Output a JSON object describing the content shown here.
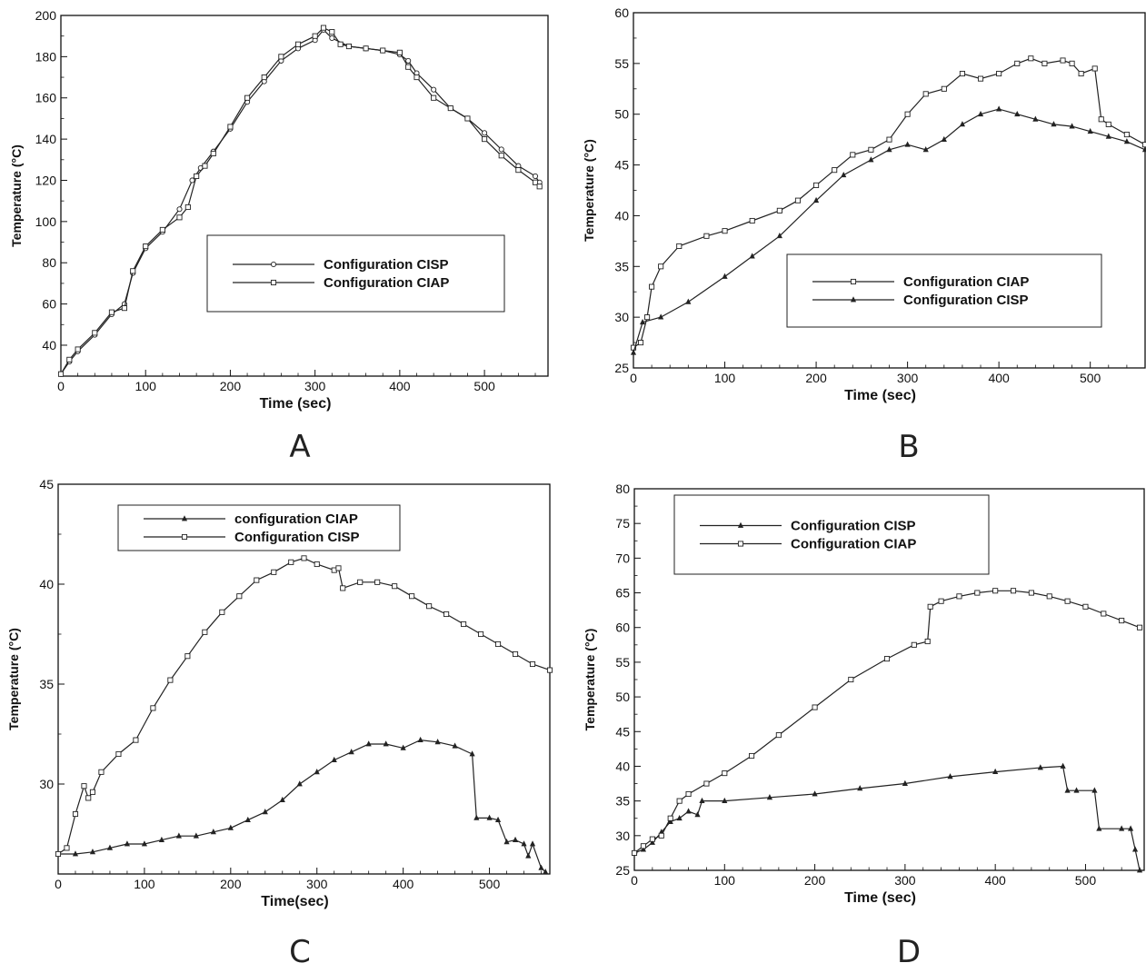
{
  "chart_data": [
    {
      "panel": "A",
      "type": "line",
      "xlabel": "Time (sec)",
      "ylabel": "Temperature (°C)",
      "xlim": [
        0,
        575
      ],
      "ylim": [
        25,
        200
      ],
      "xticks": [
        0,
        100,
        200,
        300,
        400,
        500
      ],
      "yticks": [
        40,
        60,
        80,
        100,
        120,
        140,
        160,
        180,
        200
      ],
      "legend_position": "lower-right",
      "series": [
        {
          "name": "Configuration CISP",
          "marker": "circle",
          "x": [
            0,
            10,
            20,
            40,
            60,
            75,
            85,
            100,
            120,
            140,
            155,
            165,
            180,
            200,
            220,
            240,
            260,
            280,
            300,
            310,
            320,
            340,
            360,
            380,
            400,
            410,
            420,
            440,
            460,
            480,
            500,
            520,
            540,
            560,
            565
          ],
          "y": [
            26,
            32,
            37,
            45,
            55,
            60,
            75,
            87,
            95,
            106,
            120,
            126,
            134,
            145,
            158,
            168,
            178,
            184,
            188,
            193,
            189,
            185,
            184,
            183,
            181,
            178,
            172,
            164,
            155,
            150,
            143,
            135,
            127,
            122,
            119
          ]
        },
        {
          "name": "Configuration CIAP",
          "marker": "square",
          "x": [
            0,
            10,
            20,
            40,
            60,
            75,
            85,
            100,
            120,
            140,
            150,
            160,
            170,
            180,
            200,
            220,
            240,
            260,
            280,
            300,
            310,
            320,
            330,
            340,
            360,
            380,
            400,
            410,
            420,
            440,
            460,
            480,
            500,
            520,
            540,
            560,
            565
          ],
          "y": [
            26,
            33,
            38,
            46,
            56,
            58,
            76,
            88,
            96,
            102,
            107,
            122,
            127,
            133,
            146,
            160,
            170,
            180,
            186,
            190,
            194,
            192,
            186,
            185,
            184,
            183,
            182,
            175,
            170,
            160,
            155,
            150,
            140,
            132,
            125,
            119,
            117
          ]
        }
      ]
    },
    {
      "panel": "B",
      "type": "line",
      "xlabel": "Time (sec)",
      "ylabel": "Temperature (°C)",
      "xlim": [
        0,
        560
      ],
      "ylim": [
        25,
        60
      ],
      "xticks": [
        0,
        100,
        200,
        300,
        400,
        500
      ],
      "yticks": [
        25,
        30,
        35,
        40,
        45,
        50,
        55,
        60
      ],
      "legend_position": "lower-right",
      "series": [
        {
          "name": "Configuration CIAP",
          "marker": "square",
          "x": [
            0,
            8,
            15,
            20,
            30,
            50,
            80,
            100,
            130,
            160,
            180,
            200,
            220,
            240,
            260,
            280,
            300,
            320,
            340,
            360,
            380,
            400,
            420,
            435,
            450,
            470,
            480,
            490,
            505,
            512,
            520,
            540,
            560
          ],
          "y": [
            27,
            27.5,
            30,
            33,
            35,
            37,
            38,
            38.5,
            39.5,
            40.5,
            41.5,
            43,
            44.5,
            46,
            46.5,
            47.5,
            50,
            52,
            52.5,
            54,
            53.5,
            54,
            55,
            55.5,
            55,
            55.3,
            55,
            54,
            54.5,
            49.5,
            49,
            48,
            47
          ]
        },
        {
          "name": "Configuration CISP",
          "marker": "triangle",
          "x": [
            0,
            10,
            30,
            60,
            100,
            130,
            160,
            200,
            230,
            260,
            280,
            300,
            320,
            340,
            360,
            380,
            400,
            420,
            440,
            460,
            480,
            500,
            520,
            540,
            560
          ],
          "y": [
            26.5,
            29.5,
            30,
            31.5,
            34,
            36,
            38,
            41.5,
            44,
            45.5,
            46.5,
            47,
            46.5,
            47.5,
            49,
            50,
            50.5,
            50,
            49.5,
            49,
            48.8,
            48.3,
            47.8,
            47.3,
            46.5
          ]
        }
      ]
    },
    {
      "panel": "C",
      "type": "line",
      "xlabel": "Time(sec)",
      "ylabel": "Temperature (°C)",
      "xlim": [
        0,
        570
      ],
      "ylim": [
        25.5,
        45
      ],
      "xticks": [
        0,
        100,
        200,
        300,
        400,
        500
      ],
      "yticks": [
        30,
        35,
        40,
        45
      ],
      "legend_position": "top",
      "series": [
        {
          "name": "configuration CIAP",
          "marker": "triangle",
          "x": [
            0,
            20,
            40,
            60,
            80,
            100,
            120,
            140,
            160,
            180,
            200,
            220,
            240,
            260,
            280,
            300,
            320,
            340,
            360,
            380,
            400,
            420,
            440,
            460,
            480,
            485,
            500,
            510,
            520,
            530,
            540,
            545,
            550,
            560,
            565
          ],
          "y": [
            26.5,
            26.5,
            26.6,
            26.8,
            27,
            27,
            27.2,
            27.4,
            27.4,
            27.6,
            27.8,
            28.2,
            28.6,
            29.2,
            30,
            30.6,
            31.2,
            31.6,
            32,
            32,
            31.8,
            32.2,
            32.1,
            31.9,
            31.5,
            28.3,
            28.3,
            28.2,
            27.1,
            27.2,
            27,
            26.4,
            27,
            25.8,
            25.6
          ]
        },
        {
          "name": "Configuration CISP",
          "marker": "square",
          "x": [
            0,
            10,
            20,
            30,
            35,
            40,
            50,
            70,
            90,
            110,
            130,
            150,
            170,
            190,
            210,
            230,
            250,
            270,
            285,
            300,
            320,
            325,
            330,
            350,
            370,
            390,
            410,
            430,
            450,
            470,
            490,
            510,
            530,
            550,
            570
          ],
          "y": [
            26.5,
            26.8,
            28.5,
            29.9,
            29.3,
            29.6,
            30.6,
            31.5,
            32.2,
            33.8,
            35.2,
            36.4,
            37.6,
            38.6,
            39.4,
            40.2,
            40.6,
            41.1,
            41.3,
            41,
            40.7,
            40.8,
            39.8,
            40.1,
            40.1,
            39.9,
            39.4,
            38.9,
            38.5,
            38,
            37.5,
            37,
            36.5,
            36,
            35.7
          ]
        }
      ]
    },
    {
      "panel": "D",
      "type": "line",
      "xlabel": "Time (sec)",
      "ylabel": "Temperature (°C)",
      "xlim": [
        0,
        565
      ],
      "ylim": [
        25,
        80
      ],
      "xticks": [
        0,
        100,
        200,
        300,
        400,
        500
      ],
      "yticks": [
        25,
        30,
        35,
        40,
        45,
        50,
        55,
        60,
        65,
        70,
        75,
        80
      ],
      "legend_position": "top-left",
      "series": [
        {
          "name": "Configuration CISP",
          "marker": "triangle",
          "x": [
            0,
            10,
            20,
            30,
            40,
            50,
            60,
            70,
            75,
            100,
            150,
            200,
            250,
            300,
            350,
            400,
            450,
            475,
            480,
            490,
            510,
            515,
            540,
            550,
            555,
            560
          ],
          "y": [
            27.5,
            28,
            29,
            30.5,
            32,
            32.5,
            33.5,
            33,
            35,
            35,
            35.5,
            36,
            36.8,
            37.5,
            38.5,
            39.2,
            39.8,
            40,
            36.5,
            36.5,
            36.5,
            31,
            31,
            31,
            28,
            25
          ]
        },
        {
          "name": "Configuration CIAP",
          "marker": "square",
          "x": [
            0,
            10,
            20,
            30,
            40,
            50,
            60,
            80,
            100,
            130,
            160,
            200,
            240,
            280,
            310,
            325,
            328,
            340,
            360,
            380,
            400,
            420,
            440,
            460,
            480,
            500,
            520,
            540,
            560
          ],
          "y": [
            27.5,
            28.5,
            29.5,
            30,
            32.5,
            35,
            36,
            37.5,
            39,
            41.5,
            44.5,
            48.5,
            52.5,
            55.5,
            57.5,
            58,
            63,
            63.8,
            64.5,
            65,
            65.3,
            65.3,
            65,
            64.5,
            63.8,
            63,
            62,
            61,
            60
          ]
        }
      ]
    }
  ],
  "panel_labels": {
    "a": "A",
    "b": "B",
    "c": "C",
    "d": "D"
  }
}
